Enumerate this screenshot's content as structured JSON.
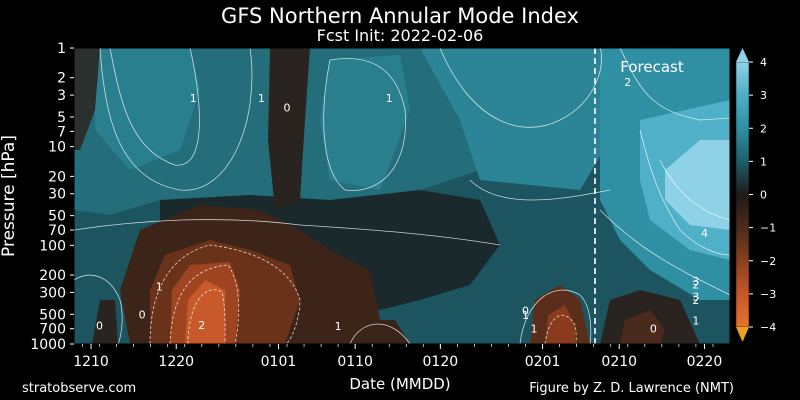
{
  "chart_data": {
    "type": "heatmap",
    "title": "GFS Northern Annular Mode Index",
    "subtitle": "Fcst Init: 2022-02-06",
    "xlabel": "Date (MMDD)",
    "ylabel": "Pressure [hPa]",
    "x_ticks": [
      "1210",
      "1220",
      "0101",
      "0110",
      "0120",
      "0201",
      "0210",
      "0220"
    ],
    "x_tick_days": [
      0,
      10,
      22,
      31,
      41,
      53,
      62,
      72
    ],
    "xlim_days": [
      -2,
      75
    ],
    "y_ticks": [
      1,
      2,
      3,
      5,
      7,
      10,
      20,
      30,
      50,
      70,
      100,
      200,
      300,
      500,
      700,
      1000
    ],
    "ylim": [
      1,
      1000
    ],
    "y_scale": "log",
    "colorbar": {
      "ticks": [
        4,
        3,
        2,
        1,
        0,
        -1,
        -2,
        -3,
        -4
      ],
      "range": [
        -4,
        4
      ],
      "colormap": "diverging brown-dark-teal"
    },
    "forecast_start_day": 58,
    "forecast_label": "Forecast",
    "contour_labels": [
      {
        "text": "1",
        "day": 12,
        "p": 3.2
      },
      {
        "text": "1",
        "day": 20,
        "p": 3.2
      },
      {
        "text": "0",
        "day": 23,
        "p": 4
      },
      {
        "text": "1",
        "day": 35,
        "p": 3.2
      },
      {
        "text": "2",
        "day": 63,
        "p": 2.2
      },
      {
        "text": "4",
        "day": 72,
        "p": 75
      },
      {
        "text": "2",
        "day": 71,
        "p": 250
      },
      {
        "text": "3",
        "day": 71,
        "p": 230
      },
      {
        "text": "3",
        "day": 71,
        "p": 330
      },
      {
        "text": "2",
        "day": 71,
        "p": 360
      },
      {
        "text": "1",
        "day": 71,
        "p": 580
      },
      {
        "text": "0",
        "day": 1,
        "p": 650
      },
      {
        "text": "0",
        "day": 6,
        "p": 500
      },
      {
        "text": "1",
        "day": 8,
        "p": 260
      },
      {
        "text": "2",
        "day": 13,
        "p": 640
      },
      {
        "text": "1",
        "day": 29,
        "p": 660
      },
      {
        "text": "1",
        "day": 51,
        "p": 510
      },
      {
        "text": "0",
        "day": 51,
        "p": 460
      },
      {
        "text": "1",
        "day": 52,
        "p": 700
      },
      {
        "text": "0",
        "day": 66,
        "p": 700
      }
    ]
  },
  "footer": {
    "left": "stratobserve.com",
    "right": "Figure by Z. D. Lawrence (NMT)"
  },
  "colors": {
    "strong_negative": "#e0682a",
    "neutral_dark": "#1f1a17",
    "positive_mid": "#2f8fa3",
    "strong_positive": "#86cde4",
    "contour_line": "#ffffff"
  }
}
